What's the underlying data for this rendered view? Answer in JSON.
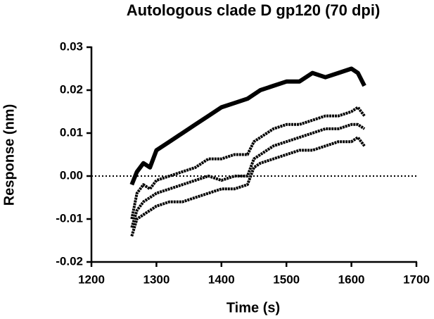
{
  "chart_data": {
    "type": "line",
    "title": "Autologous clade D gp120 (70 dpi)",
    "x_label": "Time (s)",
    "y_label": "Response (nm)",
    "x": [
      1262,
      1270,
      1280,
      1290,
      1300,
      1320,
      1340,
      1360,
      1380,
      1400,
      1420,
      1440,
      1450,
      1460,
      1480,
      1500,
      1520,
      1540,
      1560,
      1580,
      1600,
      1610,
      1620
    ],
    "series": [
      {
        "color": "#000000",
        "values": [
          -0.002,
          0.001,
          0.003,
          0.002,
          0.006,
          0.008,
          0.01,
          0.012,
          0.014,
          0.016,
          0.017,
          0.018,
          0.019,
          0.02,
          0.021,
          0.022,
          0.022,
          0.024,
          0.023,
          0.024,
          0.025,
          0.024,
          0.021
        ]
      },
      {
        "color": "#000000",
        "values": [
          -0.01,
          -0.004,
          -0.002,
          -0.003,
          -0.001,
          0.0,
          0.001,
          0.002,
          0.004,
          0.004,
          0.005,
          0.005,
          0.008,
          0.009,
          0.011,
          0.012,
          0.012,
          0.013,
          0.014,
          0.014,
          0.015,
          0.016,
          0.014
        ]
      },
      {
        "color": "#000000",
        "values": [
          -0.012,
          -0.008,
          -0.006,
          -0.005,
          -0.004,
          -0.003,
          -0.002,
          -0.001,
          0.0,
          -0.001,
          0.0,
          0.0,
          0.004,
          0.005,
          0.007,
          0.008,
          0.009,
          0.01,
          0.011,
          0.011,
          0.012,
          0.012,
          0.011
        ]
      },
      {
        "color": "#000000",
        "values": [
          -0.014,
          -0.01,
          -0.009,
          -0.008,
          -0.007,
          -0.006,
          -0.006,
          -0.005,
          -0.004,
          -0.003,
          -0.003,
          -0.002,
          0.002,
          0.003,
          0.004,
          0.005,
          0.006,
          0.006,
          0.007,
          0.008,
          0.008,
          0.009,
          0.007
        ]
      }
    ],
    "xlim": [
      1200,
      1700
    ],
    "xticks": [
      1200,
      1300,
      1400,
      1500,
      1600,
      1700
    ],
    "ylim": [
      -0.02,
      0.03
    ],
    "yticks": [
      0.03,
      0.02,
      0.01,
      {
        "value": 0,
        "label": "0.00"
      },
      -0.01,
      -0.02
    ],
    "reference_line": 0,
    "grid": false
  }
}
